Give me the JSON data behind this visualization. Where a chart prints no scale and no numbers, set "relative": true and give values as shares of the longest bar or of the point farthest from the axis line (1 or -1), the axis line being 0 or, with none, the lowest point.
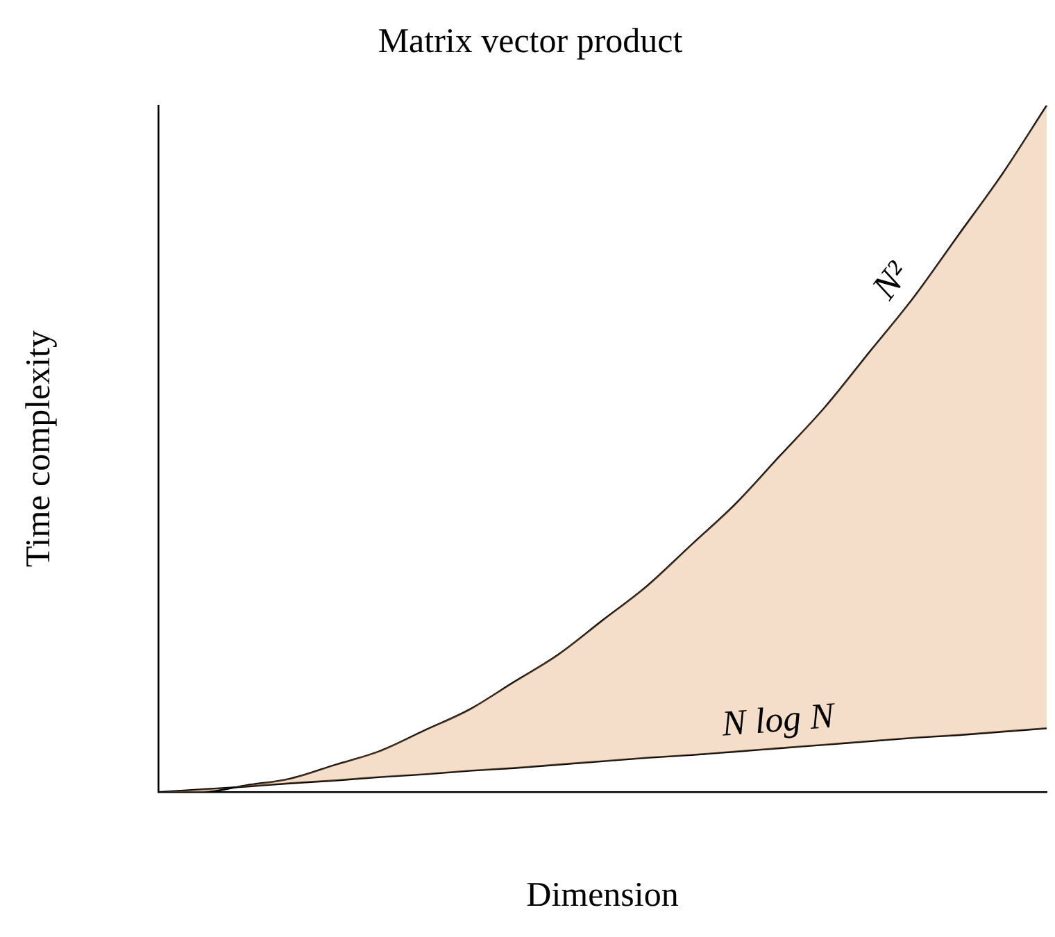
{
  "chart_data": {
    "type": "line",
    "title": "Matrix vector product",
    "xlabel": "Dimension",
    "ylabel": "Time complexity",
    "relative": true,
    "grid": false,
    "legend": false,
    "marker": "none",
    "line_style": "solid",
    "categories": [
      null,
      null,
      null,
      null,
      null,
      null,
      null,
      null,
      null,
      null,
      null,
      null,
      null,
      null,
      null,
      null,
      null,
      null,
      null,
      null,
      null
    ],
    "series": [
      {
        "name": "N²",
        "color": "#000000",
        "values": [
          0,
          0,
          0.01,
          0.02,
          0.04,
          0.06,
          0.09,
          0.12,
          0.16,
          0.2,
          0.25,
          0.3,
          0.36,
          0.42,
          0.49,
          0.56,
          0.64,
          0.72,
          0.81,
          0.9,
          1
        ],
        "lower": [
          0,
          0.004,
          0.008,
          0.013,
          0.017,
          0.022,
          0.026,
          0.031,
          0.035,
          0.04,
          0.045,
          0.05,
          0.054,
          0.059,
          0.064,
          0.069,
          0.074,
          0.079,
          0.083,
          0.088,
          0.093
        ],
        "upper": [
          0,
          0,
          0.01,
          0.02,
          0.04,
          0.06,
          0.09,
          0.12,
          0.16,
          0.2,
          0.25,
          0.3,
          0.36,
          0.42,
          0.49,
          0.56,
          0.64,
          0.72,
          0.81,
          0.9,
          1
        ]
      },
      {
        "name": "N log N",
        "color": "#000000",
        "values": [
          0,
          0.004,
          0.008,
          0.013,
          0.017,
          0.022,
          0.026,
          0.031,
          0.035,
          0.04,
          0.045,
          0.05,
          0.054,
          0.059,
          0.064,
          0.069,
          0.074,
          0.079,
          0.083,
          0.088,
          0.093
        ]
      }
    ]
  }
}
